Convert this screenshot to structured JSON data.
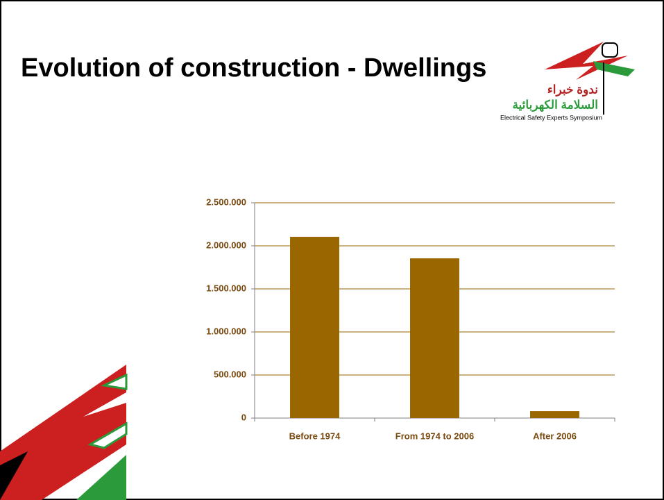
{
  "chart_data": {
    "type": "bar",
    "title": "Evolution of construction - Dwellings",
    "categories": [
      "Before 1974",
      "From 1974 to 2006",
      "After 2006"
    ],
    "values": [
      2105000,
      1855000,
      80000
    ],
    "color": "#996600",
    "ylim": [
      0,
      2500000
    ],
    "yticks": [
      0,
      {
        "value": 500000,
        "label": "500.000"
      },
      {
        "value": 1000000,
        "label": "1.000.000"
      },
      {
        "value": 1500000,
        "label": "1.500.000"
      },
      {
        "value": 2000000,
        "label": "2.000.000"
      },
      {
        "value": 2500000,
        "label": "2.500.000"
      }
    ],
    "grid": true
  },
  "logo": {
    "line1": "ندوة خبراء",
    "line2": "السلامة الكهربائية",
    "line3": "Electrical Safety Experts Symposium"
  }
}
